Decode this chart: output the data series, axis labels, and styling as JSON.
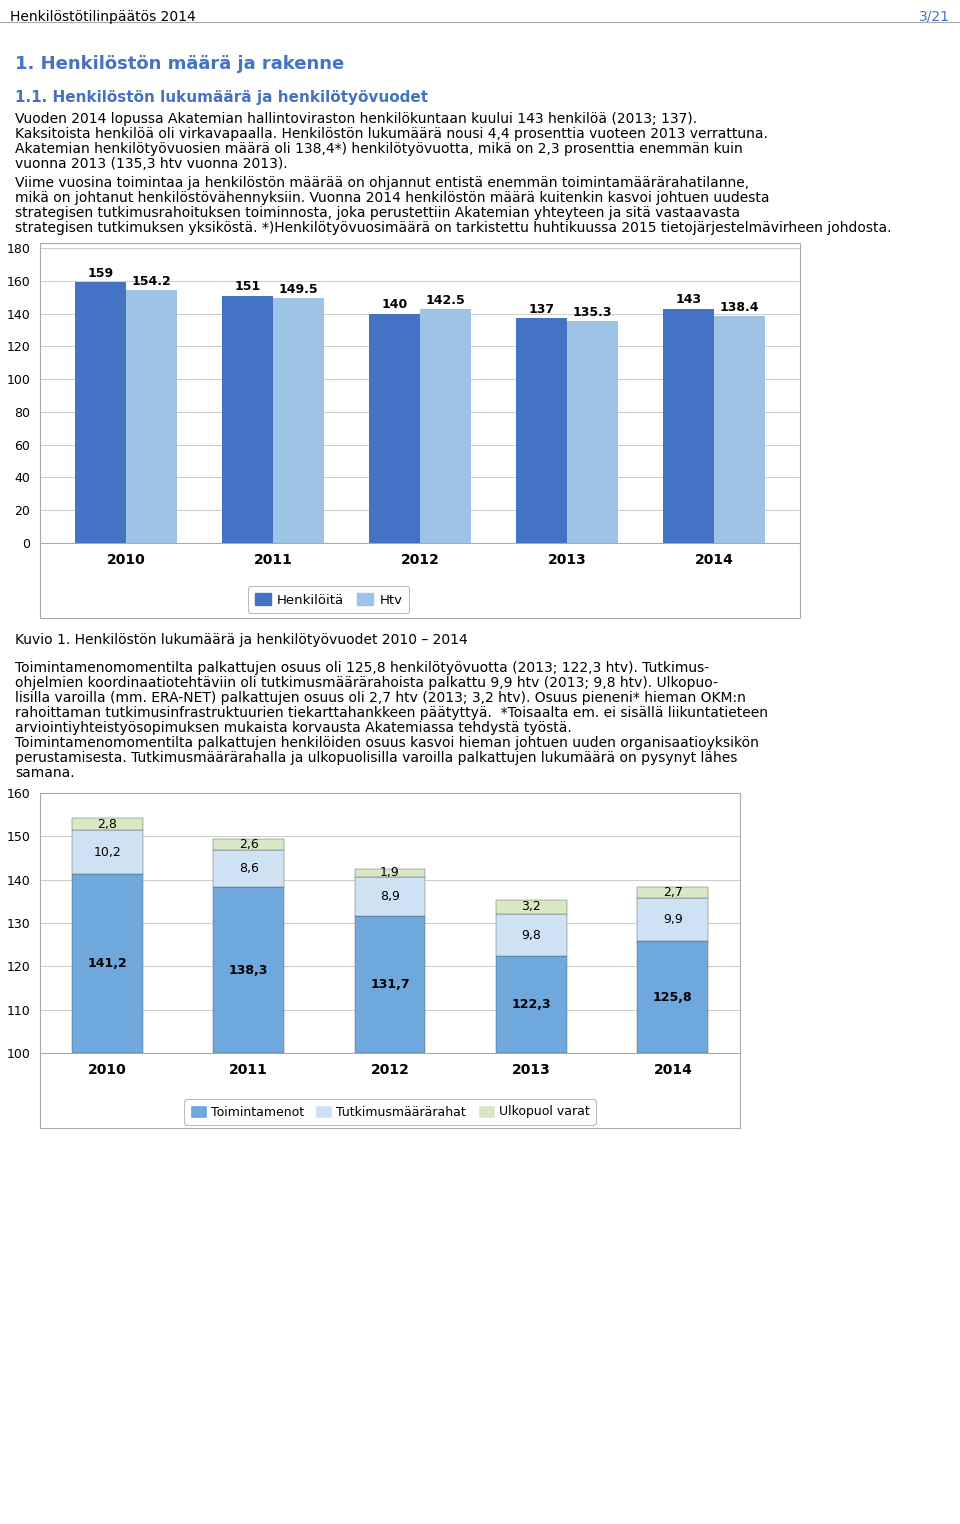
{
  "page_header_left": "Henkilöstötilinpäätös 2014",
  "page_header_right": "3/21",
  "section_title": "1. Henkilöstön määrä ja rakenne",
  "subsection_title": "1.1. Henkilöstön lukumäärä ja henkilötyövuodet",
  "para1_lines": [
    "Vuoden 2014 lopussa Akatemian hallintoviraston henkilökuntaan kuului 143 henkilöä (2013; 137).",
    "Kaksitoista henkilöä oli virkavapaalla. Henkilöstön lukumäärä nousi 4,4 prosenttia vuoteen 2013 verrattuna.",
    "Akatemian henkilötyövuosien määrä oli 138,4*) henkilötyövuotta, mikä on 2,3 prosenttia enemmän kuin",
    "vuonna 2013 (135,3 htv vuonna 2013)."
  ],
  "para2_lines": [
    "Viime vuosina toimintaa ja henkilöstön määrää on ohjannut entistä enemmän toimintamäärärahatilanne,",
    "mikä on johtanut henkilöstövähennyksiin. Vuonna 2014 henkilöstön määrä kuitenkin kasvoi johtuen uudesta",
    "strategisen tutkimusrahoituksen toiminnosta, joka perustettiin Akatemian yhteyteen ja sitä vastaavasta",
    "strategisen tutkimuksen yksiköstä. *)Henkilötyövuosimäärä on tarkistettu huhtikuussa 2015 tietojärjestelmävirheen johdosta."
  ],
  "chart1_years": [
    "2010",
    "2011",
    "2012",
    "2013",
    "2014"
  ],
  "chart1_henkiloita": [
    159,
    151,
    140,
    137,
    143
  ],
  "chart1_htv": [
    154.2,
    149.5,
    142.5,
    135.3,
    138.4
  ],
  "chart1_ylim": [
    0,
    180
  ],
  "chart1_yticks": [
    0,
    20,
    40,
    60,
    80,
    100,
    120,
    140,
    160,
    180
  ],
  "chart1_color_dark": "#4472C4",
  "chart1_color_light": "#9DC3E6",
  "chart1_legend_henkiloita": "Henkilöitä",
  "chart1_legend_htv": "Htv",
  "kuvio1_caption": "Kuvio 1. Henkilöstön lukumäärä ja henkilötyövuodet 2010 – 2014",
  "para3_lines": [
    "Toimintamenomomentilta palkattujen osuus oli 125,8 henkilötyövuotta (2013; 122,3 htv). Tutkimus-",
    "ohjelmien koordinaatiotehtäviin oli tutkimusmäärärahoista palkattu 9,9 htv (2013; 9,8 htv). Ulkopuo-",
    "lisilla varoilla (mm. ERA-NET) palkattujen osuus oli 2,7 htv (2013; 3,2 htv). Osuus pieneni* hieman OKM:n",
    "rahoittaman tutkimusinfrastruktuurien tiekarttahankkeen päätyttyä.  *Toisaalta em. ei sisällä liikuntatieteen",
    "arviointiyhteistyösopimuksen mukaista korvausta Akatemiassa tehdystä työstä."
  ],
  "para4_lines": [
    "Toimintamenomomentilta palkattujen henkilöiden osuus kasvoi hieman johtuen uuden organisaatioyksikön",
    "perustamisesta. Tutkimusmäärärahalla ja ulkopuolisilla varoilla palkattujen lukumäärä on pysynyt lähes",
    "samana."
  ],
  "chart2_years": [
    "2010",
    "2011",
    "2012",
    "2013",
    "2014"
  ],
  "chart2_toimintamenot": [
    141.2,
    138.3,
    131.7,
    122.3,
    125.8
  ],
  "chart2_tutkimus": [
    10.2,
    8.6,
    8.9,
    9.8,
    9.9
  ],
  "chart2_ulkopuol": [
    2.8,
    2.6,
    1.9,
    3.2,
    2.7
  ],
  "chart2_ylim": [
    100,
    160
  ],
  "chart2_yticks": [
    100,
    110,
    120,
    130,
    140,
    150,
    160
  ],
  "chart2_color_toimintamenot": "#6FA8DC",
  "chart2_color_tutkimus": "#CFE2F3",
  "chart2_color_ulkopuol": "#D9E8C4",
  "chart2_legend_toimintamenot": "Toimintamenot",
  "chart2_legend_tutkimus": "Tutkimusmäärärahat",
  "chart2_legend_ulkopuol": "Ulkopuol varat",
  "background_color": "#FFFFFF",
  "text_color": "#000000",
  "header_color": "#4472C4",
  "section_color": "#4472C4",
  "border_color": "#808080"
}
